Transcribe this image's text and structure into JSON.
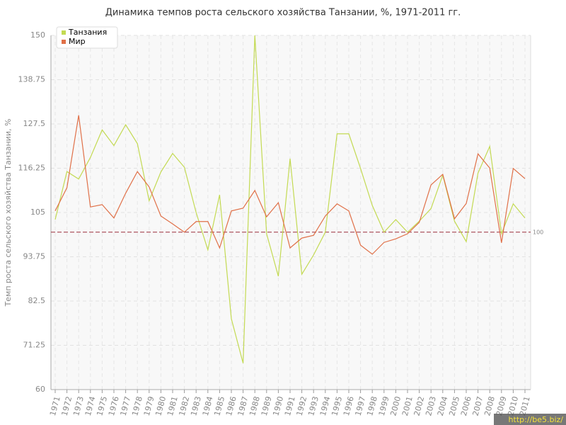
{
  "chart_data": {
    "type": "line",
    "title": "Динамика темпов роста сельского хозяйства Танзании, %, 1971-2011 гг.",
    "y_label": "Темп роста сельского хозяйства Танзании, %",
    "categories": [
      "1971",
      "1972",
      "1973",
      "1974",
      "1975",
      "1976",
      "1977",
      "1978",
      "1979",
      "1980",
      "1981",
      "1982",
      "1983",
      "1984",
      "1985",
      "1986",
      "1987",
      "1988",
      "1989",
      "1990",
      "1991",
      "1992",
      "1993",
      "1994",
      "1995",
      "1996",
      "1997",
      "1998",
      "1999",
      "2000",
      "2001",
      "2002",
      "2003",
      "2004",
      "2005",
      "2006",
      "2007",
      "2008",
      "2009",
      "2010",
      "2011"
    ],
    "series": [
      {
        "name": "Танзания",
        "color": "#c3da52",
        "values": [
          103.2,
          115.4,
          113.5,
          119,
          126,
          122,
          127.3,
          122.5,
          108,
          115.3,
          120,
          116.5,
          105,
          95.5,
          109.5,
          78,
          66.7,
          150,
          99.6,
          88.8,
          118.7,
          89.3,
          94.2,
          100,
          125,
          125,
          116.2,
          106.8,
          100,
          103.2,
          100,
          102.8,
          106,
          114.5,
          102.8,
          97.6,
          115,
          121.8,
          99.6,
          107.2,
          103.6
        ]
      },
      {
        "name": "Мир",
        "color": "#e07048",
        "values": [
          105.4,
          111.3,
          129.7,
          106.4,
          107,
          103.6,
          109.9,
          115.4,
          111.5,
          104.1,
          102.1,
          100,
          102.7,
          102.7,
          96,
          105.4,
          106.1,
          110.6,
          103.9,
          107.5,
          96,
          98.5,
          99.2,
          104.1,
          107.2,
          105.4,
          96.7,
          94.4,
          97.4,
          98.3,
          99.6,
          102.5,
          112,
          114.7,
          103.4,
          107.3,
          119.9,
          116.3,
          97.3,
          116.2,
          113.6
        ]
      }
    ],
    "ylim": [
      60,
      150
    ],
    "yticks": [
      60,
      71.25,
      82.5,
      93.75,
      105,
      116.25,
      127.5,
      138.75,
      150
    ],
    "grid": true,
    "legend": "top-left",
    "reference_line": {
      "value": 100,
      "color": "#9b2d3a"
    },
    "watermark": "http://be5.biz/"
  }
}
